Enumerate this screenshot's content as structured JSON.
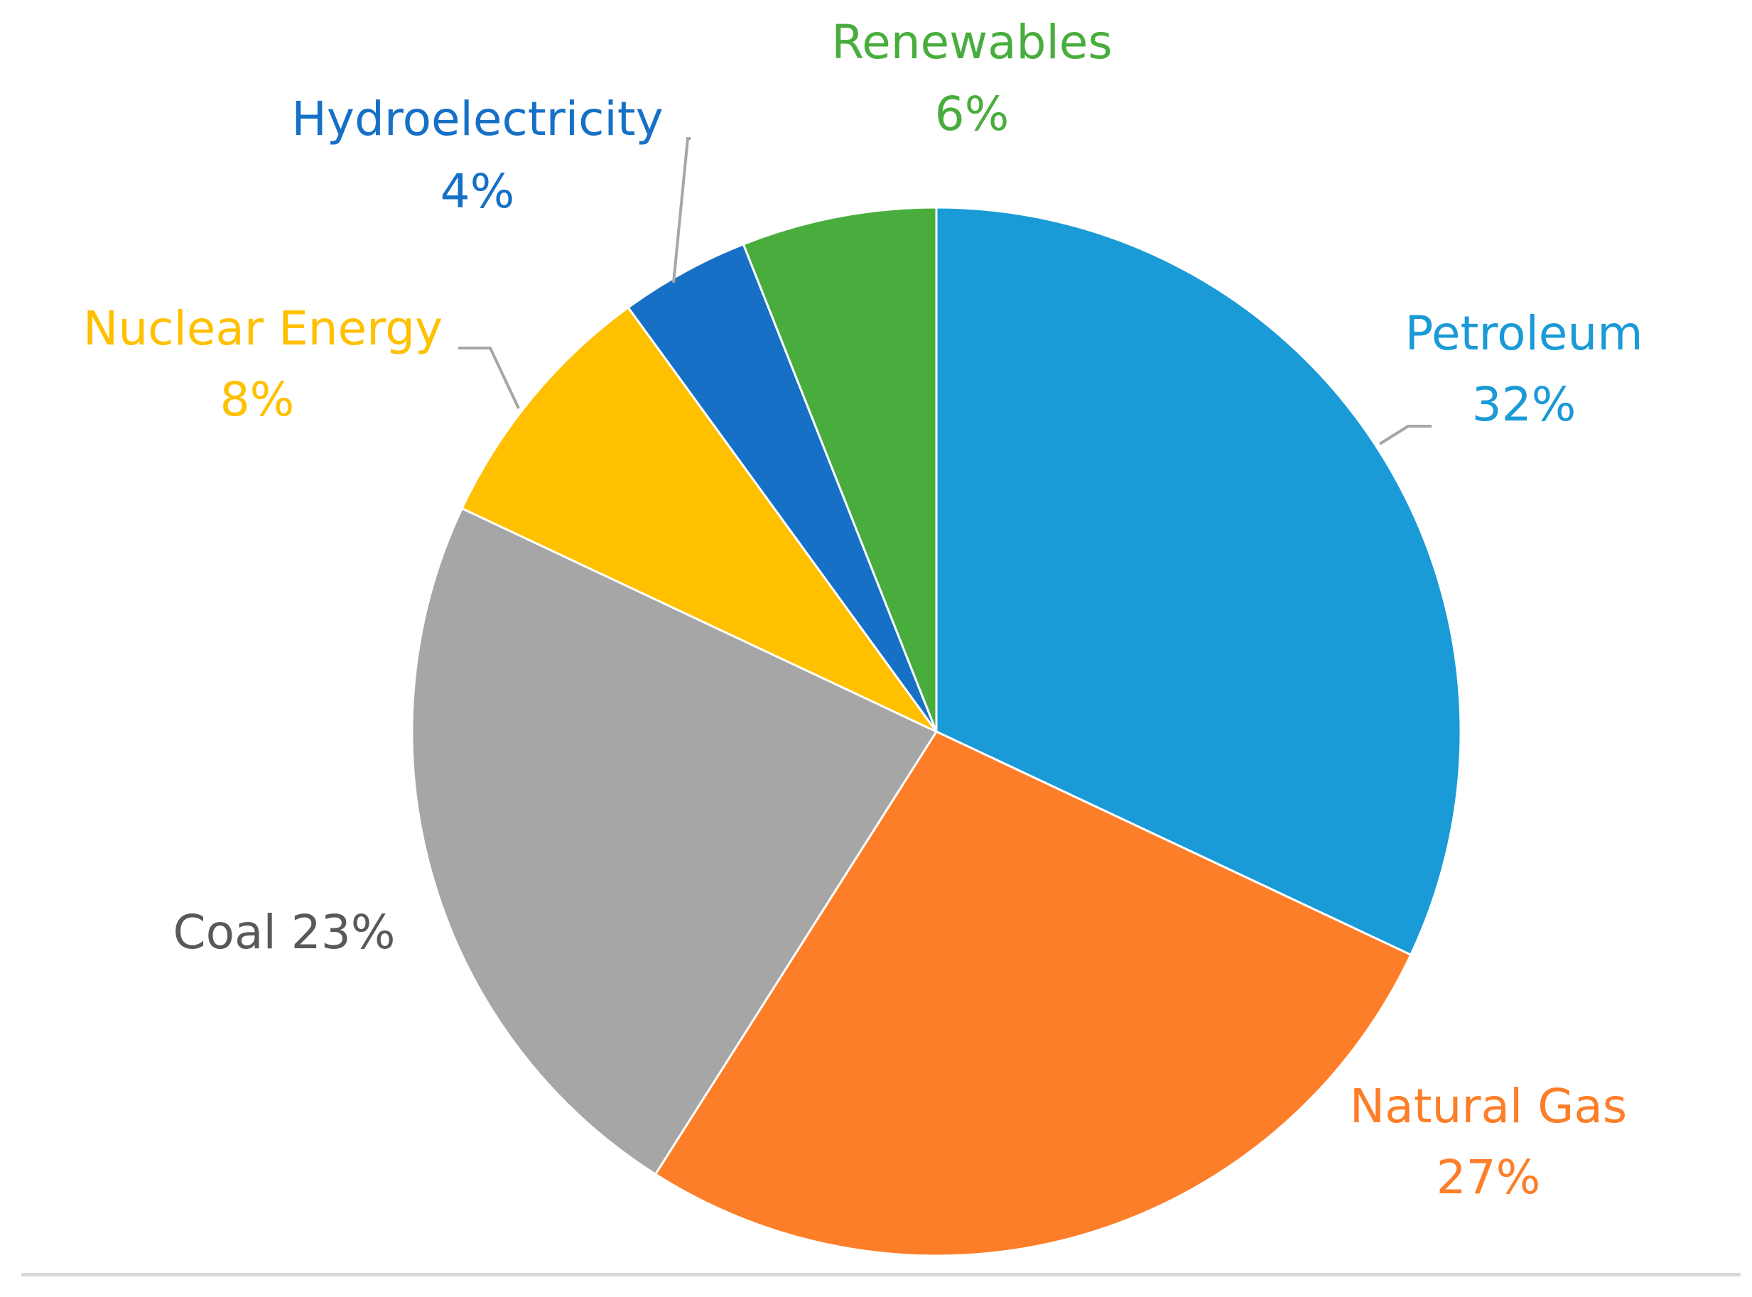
{
  "chart_data": {
    "type": "pie",
    "title": "",
    "start_angle_deg": 0,
    "direction": "clockwise",
    "slices": [
      {
        "label": "Petroleum",
        "value": 32,
        "value_label": "32%",
        "color": "#1a9ad6",
        "label_color": "#1a9ad6"
      },
      {
        "label": "Natural Gas",
        "value": 27,
        "value_label": "27%",
        "color": "#fd7e28",
        "label_color": "#fd7e28"
      },
      {
        "label": "Coal",
        "value": 23,
        "value_label": "23%",
        "color": "#a6a6a6",
        "label_color": "#595959"
      },
      {
        "label": "Nuclear Energy",
        "value": 8,
        "value_label": "8%",
        "color": "#ffc000",
        "label_color": "#ffc000"
      },
      {
        "label": "Hydroelectricity",
        "value": 4,
        "value_label": "4%",
        "color": "#1670c6",
        "label_color": "#1670c6"
      },
      {
        "label": "Renewables",
        "value": 6,
        "value_label": "6%",
        "color": "#48ad3d",
        "label_color": "#48ad3d"
      }
    ]
  }
}
